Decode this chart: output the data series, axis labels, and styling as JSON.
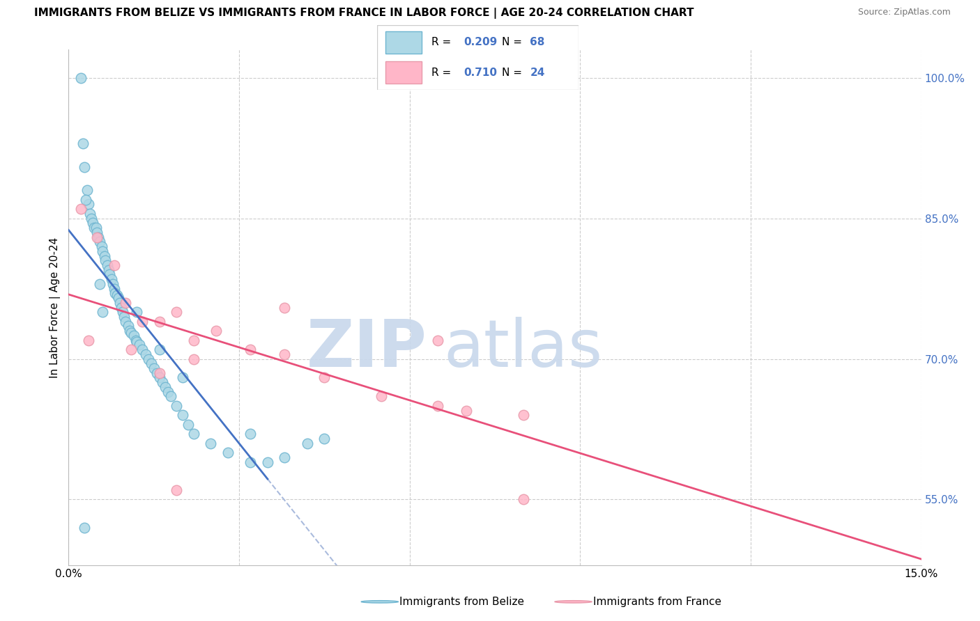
{
  "title": "IMMIGRANTS FROM BELIZE VS IMMIGRANTS FROM FRANCE IN LABOR FORCE | AGE 20-24 CORRELATION CHART",
  "source": "Source: ZipAtlas.com",
  "ylabel": "In Labor Force | Age 20-24",
  "xlim": [
    0.0,
    15.0
  ],
  "ylim": [
    48.0,
    103.0
  ],
  "xticks": [
    0.0,
    3.0,
    6.0,
    9.0,
    12.0,
    15.0
  ],
  "xtick_labels": [
    "0.0%",
    "",
    "",
    "",
    "",
    "15.0%"
  ],
  "yticks": [
    55.0,
    70.0,
    85.0,
    100.0
  ],
  "ytick_labels": [
    "55.0%",
    "70.0%",
    "85.0%",
    "100.0%"
  ],
  "belize_color": "#ADD8E6",
  "france_color": "#FFB6C8",
  "belize_edge": "#6EB5D0",
  "france_edge": "#E899AA",
  "trend_belize_color": "#4472C4",
  "trend_france_color": "#E8507A",
  "trend_belize_dash_color": "#AABBDD",
  "watermark_zip": "ZIP",
  "watermark_atlas": "atlas",
  "watermark_color_zip": "#C8D8EC",
  "watermark_color_atlas": "#C8D8EC",
  "legend_R_belize": "0.209",
  "legend_N_belize": "68",
  "legend_R_france": "0.710",
  "legend_N_france": "24",
  "belize_x": [
    0.22,
    0.25,
    0.28,
    0.32,
    0.35,
    0.38,
    0.4,
    0.43,
    0.45,
    0.48,
    0.5,
    0.52,
    0.55,
    0.58,
    0.6,
    0.63,
    0.65,
    0.68,
    0.7,
    0.72,
    0.75,
    0.78,
    0.8,
    0.82,
    0.85,
    0.88,
    0.9,
    0.93,
    0.95,
    0.98,
    1.0,
    1.05,
    1.08,
    1.1,
    1.15,
    1.18,
    1.2,
    1.25,
    1.3,
    1.35,
    1.4,
    1.45,
    1.5,
    1.55,
    1.6,
    1.65,
    1.7,
    1.75,
    1.8,
    1.9,
    2.0,
    2.1,
    2.2,
    2.5,
    2.8,
    3.2,
    3.5,
    3.8,
    4.2,
    4.5,
    0.3,
    0.55,
    0.6,
    1.2,
    1.6,
    2.0,
    3.2,
    0.28
  ],
  "belize_y": [
    100.0,
    93.0,
    90.5,
    88.0,
    86.5,
    85.5,
    85.0,
    84.5,
    84.0,
    84.0,
    83.5,
    83.0,
    82.5,
    82.0,
    81.5,
    81.0,
    80.5,
    80.0,
    79.5,
    79.0,
    78.5,
    78.0,
    77.5,
    77.0,
    76.8,
    76.5,
    76.0,
    75.5,
    75.0,
    74.5,
    74.0,
    73.5,
    73.0,
    72.8,
    72.5,
    72.0,
    71.8,
    71.5,
    71.0,
    70.5,
    70.0,
    69.5,
    69.0,
    68.5,
    68.0,
    67.5,
    67.0,
    66.5,
    66.0,
    65.0,
    64.0,
    63.0,
    62.0,
    61.0,
    60.0,
    59.0,
    59.0,
    59.5,
    61.0,
    61.5,
    87.0,
    78.0,
    75.0,
    75.0,
    71.0,
    68.0,
    62.0,
    52.0
  ],
  "france_x": [
    0.22,
    0.5,
    0.8,
    1.0,
    1.3,
    1.6,
    1.9,
    2.2,
    2.6,
    3.2,
    3.8,
    4.5,
    5.5,
    6.5,
    7.0,
    8.0,
    0.35,
    1.1,
    1.6,
    2.2,
    3.8,
    6.5,
    1.9,
    8.0
  ],
  "france_y": [
    86.0,
    83.0,
    80.0,
    76.0,
    74.0,
    74.0,
    75.0,
    72.0,
    73.0,
    71.0,
    70.5,
    68.0,
    66.0,
    65.0,
    64.5,
    64.0,
    72.0,
    71.0,
    68.5,
    70.0,
    75.5,
    72.0,
    56.0,
    55.0
  ],
  "belize_trend_xmin": 0.0,
  "belize_trend_xmax": 3.5,
  "france_trend_xmin": 0.0,
  "france_trend_xmax": 15.0
}
